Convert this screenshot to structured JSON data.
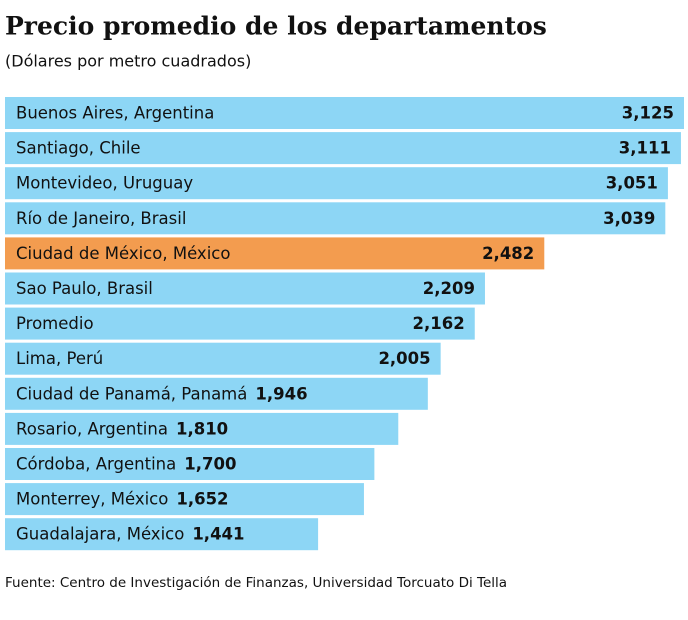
{
  "chart_data": {
    "type": "bar",
    "orientation": "horizontal",
    "title": "Precio promedio de los departamentos",
    "subtitle": "(Dólares por metro cuadrados)",
    "categories": [
      "Buenos Aires, Argentina",
      "Santiago, Chile",
      "Montevideo, Uruguay",
      "Río de Janeiro, Brasil",
      "Ciudad de México, México",
      "Sao Paulo, Brasil",
      "Promedio",
      "Lima, Perú",
      "Ciudad de Panamá, Panamá",
      "Rosario, Argentina",
      "Córdoba, Argentina",
      "Monterrey, México",
      "Guadalajara, México"
    ],
    "values": [
      3125,
      3111,
      3051,
      3039,
      2482,
      2209,
      2162,
      2005,
      1946,
      1810,
      1700,
      1652,
      1441
    ],
    "value_labels": [
      "3,125",
      "3,111",
      "3,051",
      "3,039",
      "2,482",
      "2,209",
      "2,162",
      "2,005",
      "1,946",
      "1,810",
      "1,700",
      "1,652",
      "1,441"
    ],
    "colors": [
      "#8dd6f5",
      "#8dd6f5",
      "#8dd6f5",
      "#8dd6f5",
      "#f39c4f",
      "#8dd6f5",
      "#8dd6f5",
      "#8dd6f5",
      "#8dd6f5",
      "#8dd6f5",
      "#8dd6f5",
      "#8dd6f5",
      "#8dd6f5"
    ],
    "source": "Fuente: Centro de Investigación de Finanzas, Universidad Torcuato Di Tella"
  }
}
